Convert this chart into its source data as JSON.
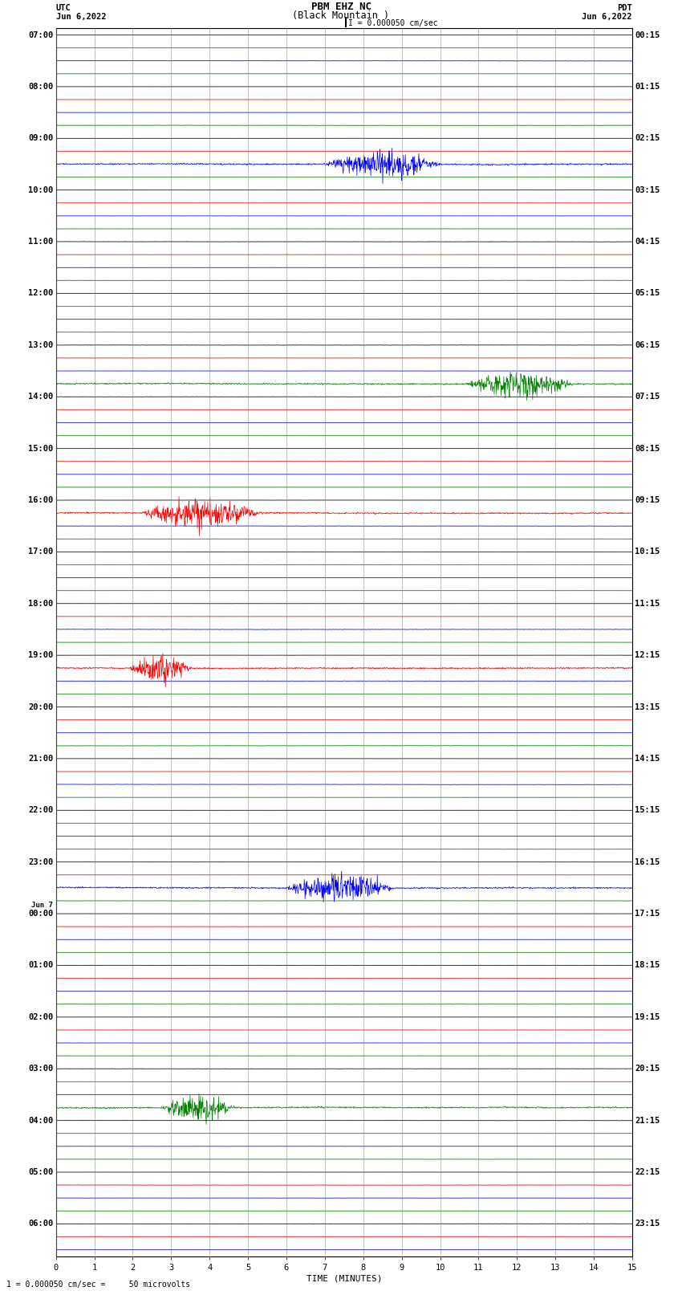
{
  "title_line1": "PBM EHZ NC",
  "title_line2": "(Black Mountain )",
  "scale_label": "I = 0.000050 cm/sec",
  "left_header1": "UTC",
  "left_header2": "Jun 6,2022",
  "right_header1": "PDT",
  "right_header2": "Jun 6,2022",
  "bottom_note": "1 = 0.000050 cm/sec =     50 microvolts",
  "xlabel": "TIME (MINUTES)",
  "xlim": [
    0,
    15
  ],
  "xticks": [
    0,
    1,
    2,
    3,
    4,
    5,
    6,
    7,
    8,
    9,
    10,
    11,
    12,
    13,
    14,
    15
  ],
  "left_labels": [
    "07:00",
    "",
    "",
    "",
    "08:00",
    "",
    "",
    "",
    "09:00",
    "",
    "",
    "",
    "10:00",
    "",
    "",
    "",
    "11:00",
    "",
    "",
    "",
    "12:00",
    "",
    "",
    "",
    "13:00",
    "",
    "",
    "",
    "14:00",
    "",
    "",
    "",
    "15:00",
    "",
    "",
    "",
    "16:00",
    "",
    "",
    "",
    "17:00",
    "",
    "",
    "",
    "18:00",
    "",
    "",
    "",
    "19:00",
    "",
    "",
    "",
    "20:00",
    "",
    "",
    "",
    "21:00",
    "",
    "",
    "",
    "22:00",
    "",
    "",
    "",
    "23:00",
    "",
    "",
    "",
    "Jun 7|00:00",
    "",
    "",
    "",
    "01:00",
    "",
    "",
    "",
    "02:00",
    "",
    "",
    "",
    "03:00",
    "",
    "",
    "",
    "04:00",
    "",
    "",
    "",
    "05:00",
    "",
    "",
    "",
    "06:00",
    "",
    ""
  ],
  "right_labels": [
    "00:15",
    "",
    "",
    "",
    "01:15",
    "",
    "",
    "",
    "02:15",
    "",
    "",
    "",
    "03:15",
    "",
    "",
    "",
    "04:15",
    "",
    "",
    "",
    "05:15",
    "",
    "",
    "",
    "06:15",
    "",
    "",
    "",
    "07:15",
    "",
    "",
    "",
    "08:15",
    "",
    "",
    "",
    "09:15",
    "",
    "",
    "",
    "10:15",
    "",
    "",
    "",
    "11:15",
    "",
    "",
    "",
    "12:15",
    "",
    "",
    "",
    "13:15",
    "",
    "",
    "",
    "14:15",
    "",
    "",
    "",
    "15:15",
    "",
    "",
    "",
    "16:15",
    "",
    "",
    "",
    "17:15",
    "",
    "",
    "",
    "18:15",
    "",
    "",
    "",
    "19:15",
    "",
    "",
    "",
    "20:15",
    "",
    "",
    "",
    "21:15",
    "",
    "",
    "",
    "22:15",
    "",
    "",
    "",
    "23:15",
    "",
    ""
  ],
  "num_rows": 95,
  "row_colors_pattern": [
    "black",
    "red",
    "blue",
    "green"
  ],
  "bg_color": "white",
  "base_noise": 0.008,
  "event_noise": 0.04,
  "event_rows": [
    2,
    7,
    10,
    11,
    16,
    19,
    24,
    27,
    28,
    33,
    37,
    38,
    41,
    46,
    49,
    50,
    55,
    58,
    63,
    66,
    67,
    72,
    75,
    80,
    83,
    84,
    89,
    92
  ],
  "large_event_rows": [
    10,
    27,
    37,
    49,
    66,
    83
  ],
  "large_event_noise": 0.18
}
